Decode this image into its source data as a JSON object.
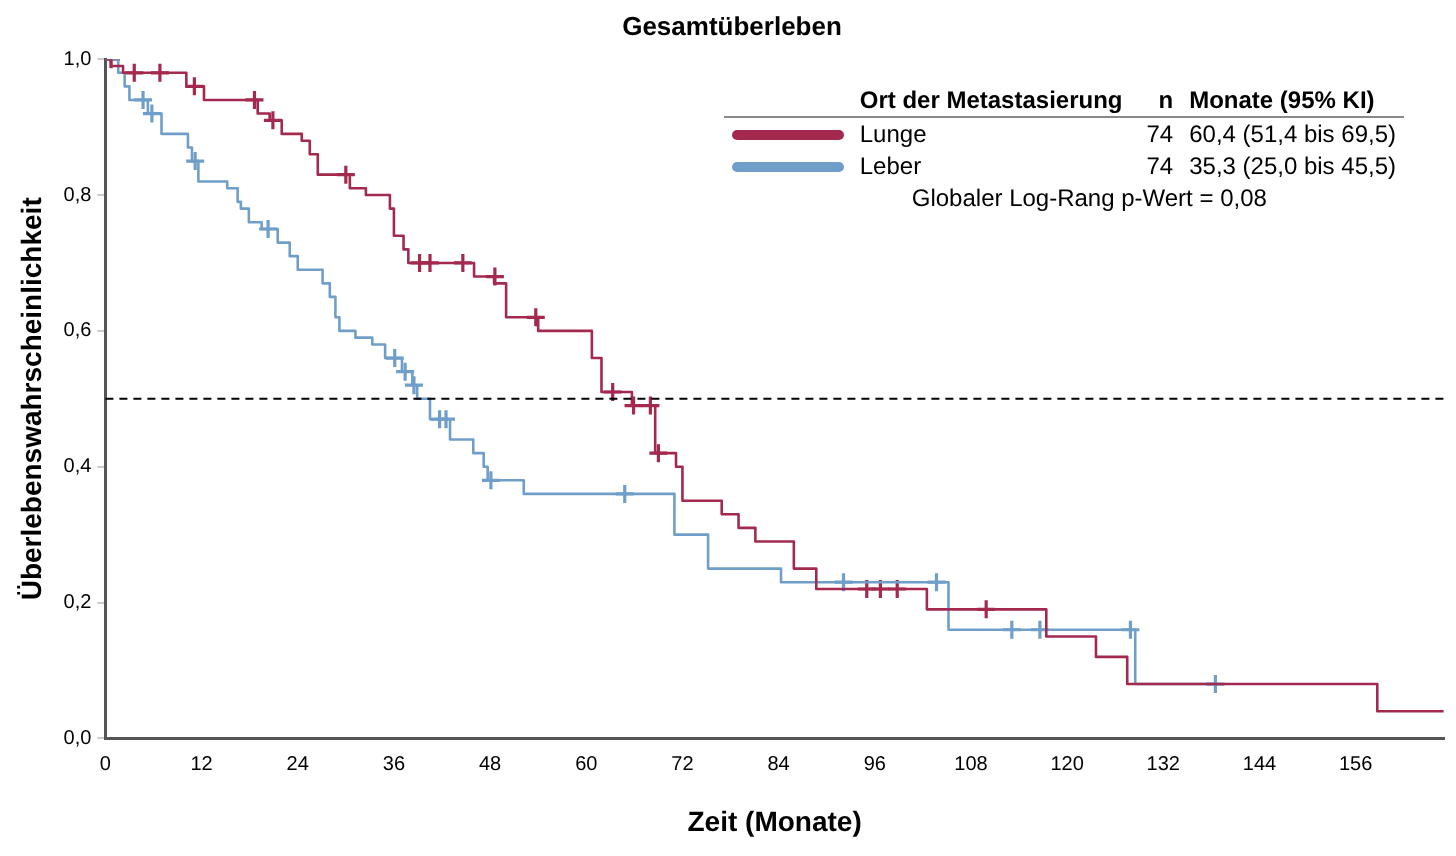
{
  "chart_data": {
    "type": "step",
    "title": "Gesamtüberleben",
    "xlabel": "Zeit (Monate)",
    "ylabel": "Überlebenswahrscheinlichkeit",
    "legend_title": "Ort der Metastasierung",
    "legend": "top right",
    "grid": false,
    "annotations": [
      "n",
      "Monate (95% KI)",
      "74",
      "60,4 (51,4 bis 69,5)",
      "74",
      "35,3 (25,0 bis 45,5)",
      "Globaler Log-Rang p-Wert = 0,08"
    ],
    "xlim": [
      0,
      167
    ],
    "xticks": [
      0,
      12,
      24,
      36,
      48,
      60,
      72,
      84,
      96,
      108,
      120,
      132,
      144,
      156
    ],
    "ylim": [
      0,
      1
    ],
    "yticks": [
      {
        "value": 0,
        "label": "0,0"
      },
      {
        "value": 0.2,
        "label": "0,2"
      },
      {
        "value": 0.4,
        "label": "0,4"
      },
      {
        "value": 0.6,
        "label": "0,6"
      },
      {
        "value": 0.8,
        "label": "0,8"
      },
      {
        "value": 1,
        "label": "1,0"
      }
    ],
    "ref_lines": [
      {
        "axis": "y",
        "value": 0.5,
        "label": null,
        "color": "#000000",
        "line_style": "dashed"
      }
    ],
    "series": [
      {
        "name": "Lunge",
        "color": "#a3294f",
        "x": [
          0,
          0.7,
          2.2,
          10.1,
          12.3,
          19,
          20.5,
          22,
          24.5,
          25.5,
          26.5,
          30.5,
          32.5,
          35.5,
          36,
          37.2,
          37.8,
          46,
          48.5,
          50,
          54,
          60.7,
          61.9,
          65.7,
          68.6,
          71.2,
          72,
          76.9,
          79,
          81.1,
          85.9,
          88.7,
          102.5,
          117.4,
          123.6,
          127.5,
          158.7,
          167
        ],
        "values": [
          1,
          0.99,
          0.98,
          0.96,
          0.94,
          0.92,
          0.91,
          0.89,
          0.88,
          0.86,
          0.83,
          0.81,
          0.8,
          0.78,
          0.74,
          0.72,
          0.7,
          0.68,
          0.67,
          0.62,
          0.6,
          0.56,
          0.51,
          0.49,
          0.42,
          0.4,
          0.35,
          0.33,
          0.31,
          0.29,
          0.25,
          0.22,
          0.19,
          0.15,
          0.12,
          0.08,
          0.04,
          0.04
        ]
      },
      {
        "name": "Leber",
        "color": "#6f9fc9",
        "x": [
          0,
          1.6,
          2.4,
          3,
          5.3,
          7,
          10.3,
          10.8,
          11.6,
          15.2,
          16.5,
          16.9,
          17.9,
          19.5,
          21.5,
          23,
          24,
          27.1,
          28,
          28.7,
          29.2,
          31.2,
          33.3,
          34.9,
          37,
          38.3,
          38.9,
          40.5,
          43,
          45.9,
          47.2,
          47.7,
          52.2,
          71,
          75.2,
          84.3,
          105.2,
          128.5,
          138.5
        ],
        "values": [
          1,
          0.98,
          0.96,
          0.94,
          0.92,
          0.89,
          0.87,
          0.85,
          0.82,
          0.81,
          0.79,
          0.78,
          0.76,
          0.75,
          0.73,
          0.71,
          0.69,
          0.67,
          0.65,
          0.62,
          0.6,
          0.59,
          0.58,
          0.56,
          0.54,
          0.52,
          0.5,
          0.47,
          0.44,
          0.42,
          0.4,
          0.38,
          0.36,
          0.3,
          0.25,
          0.23,
          0.16,
          0.08,
          0.08
        ]
      },
      {
        "color": "#a3294f",
        "type": "scatter",
        "marker": "cross",
        "x": [
          0.7,
          3.6,
          6.8,
          11.1,
          18.6,
          20.9,
          30,
          39.2,
          40.5,
          44.6,
          48.6,
          53.7,
          63.3,
          65.9,
          68,
          69,
          95,
          96.7,
          98.8,
          109.9
        ],
        "values": [
          1,
          0.98,
          0.98,
          0.96,
          0.94,
          0.91,
          0.83,
          0.7,
          0.7,
          0.7,
          0.68,
          0.62,
          0.51,
          0.49,
          0.49,
          0.42,
          0.22,
          0.22,
          0.22,
          0.19
        ]
      },
      {
        "color": "#6f9fc9",
        "type": "scatter",
        "marker": "cross",
        "x": [
          4.7,
          5.8,
          11.2,
          20.3,
          36.1,
          37.4,
          38.5,
          41.7,
          42.5,
          48.1,
          64.8,
          92.1,
          103.7,
          113.1,
          116.6,
          127.9,
          138.5
        ],
        "values": [
          0.94,
          0.92,
          0.85,
          0.75,
          0.56,
          0.54,
          0.52,
          0.47,
          0.47,
          0.38,
          0.36,
          0.23,
          0.23,
          0.16,
          0.16,
          0.16,
          0.08
        ]
      }
    ]
  }
}
